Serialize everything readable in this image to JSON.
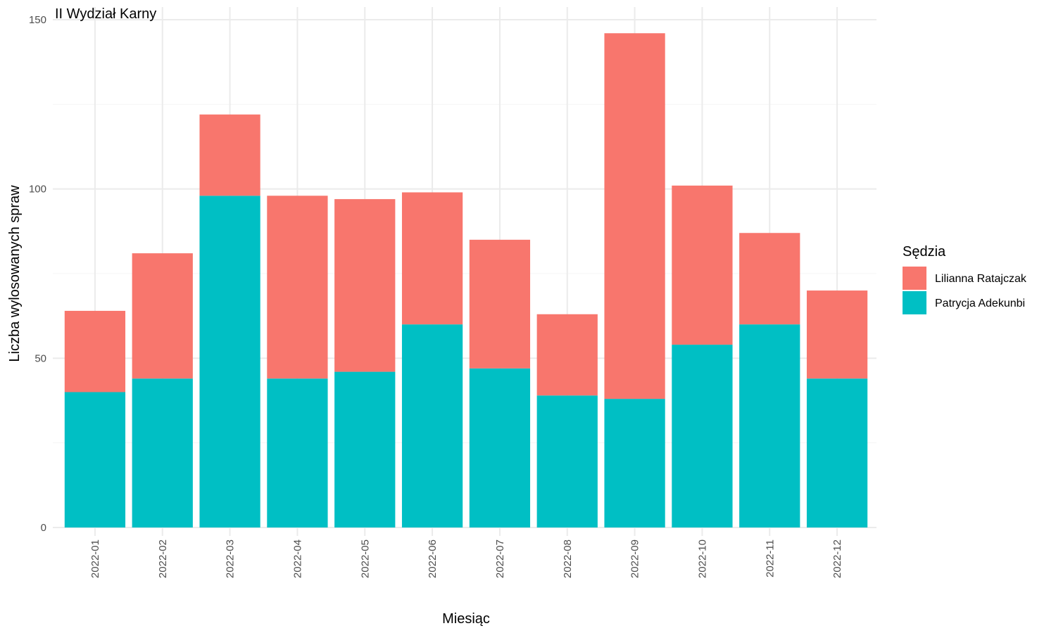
{
  "chart_data": {
    "type": "bar",
    "stacked": true,
    "title": "II Wydział Karny",
    "xlabel": "Miesiąc",
    "ylabel": "Liczba wylosowanych spraw",
    "ylim": [
      0,
      150
    ],
    "yticks": [
      0,
      50,
      100,
      150
    ],
    "grid": true,
    "legend": {
      "title": "Sędzia",
      "position": "right"
    },
    "categories": [
      "2022-01",
      "2022-02",
      "2022-03",
      "2022-04",
      "2022-05",
      "2022-06",
      "2022-07",
      "2022-08",
      "2022-09",
      "2022-10",
      "2022-11",
      "2022-12"
    ],
    "series": [
      {
        "name": "Patrycja Adekunbi",
        "color": "#00bfc4",
        "values": [
          40,
          44,
          98,
          44,
          46,
          60,
          47,
          39,
          38,
          54,
          60,
          44
        ]
      },
      {
        "name": "Lilianna Ratajczak",
        "color": "#f8766d",
        "values": [
          24,
          37,
          24,
          54,
          51,
          39,
          38,
          24,
          108,
          47,
          27,
          26
        ]
      }
    ],
    "legend_order": [
      "Lilianna Ratajczak",
      "Patrycja Adekunbi"
    ]
  }
}
